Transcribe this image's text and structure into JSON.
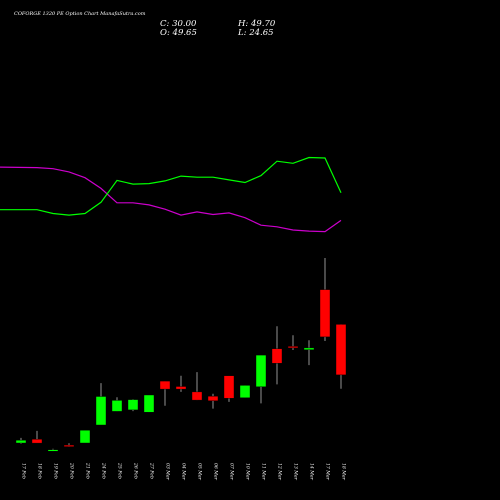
{
  "chart_data": {
    "type": "candlestick",
    "title": "COFORGE 1320  PE Option  Chart ManafaSutra.com",
    "ohlc": {
      "close_label": "C: 30.00",
      "high_label": "H: 49.70",
      "open_label": "O: 49.65",
      "low_label": "L: 24.65"
    },
    "colors": {
      "up": "#00ff00",
      "down": "#ff0000",
      "wick": "#b8b8b8",
      "line_green": "#00ff00",
      "line_magenta": "#cc00cc",
      "background": "#000000"
    },
    "categories": [
      "17 Feb",
      "18 Feb",
      "19 Feb",
      "20 Feb",
      "21 Feb",
      "24 Feb",
      "25 Feb",
      "26 Feb",
      "27 Feb",
      "03 Mar",
      "04 Mar",
      "05 Mar",
      "06 Mar",
      "07 Mar",
      "10 Mar",
      "11 Mar",
      "12 Mar",
      "13 Mar",
      "14 Mar",
      "17 Mar",
      "18 Mar"
    ],
    "x_tick_labels": [
      "17 Feb",
      "18 Feb",
      "19 Feb",
      "20 Feb",
      "21 Feb",
      "24 Feb",
      "25 Feb",
      "26 Feb",
      "27 Feb",
      "03 Mar",
      "04 Mar",
      "05 Mar",
      "06 Mar",
      "07 Mar",
      "10 Mar",
      "11 Mar",
      "12 Mar",
      "13 Mar",
      "14 Mar",
      "17 Mar",
      "18 Mar"
    ],
    "candles": [
      {
        "open": 3.5,
        "high": 5.5,
        "low": 3.2,
        "close": 4.6
      },
      {
        "open": 5.0,
        "high": 8.2,
        "low": 3.5,
        "close": 3.5
      },
      {
        "open": 0.7,
        "high": 1.3,
        "low": 0.3,
        "close": 0.9
      },
      {
        "open": 2.7,
        "high": 3.4,
        "low": 2.0,
        "close": 2.4
      },
      {
        "open": 3.5,
        "high": 8.5,
        "low": 3.5,
        "close": 8.5
      },
      {
        "open": 10.5,
        "high": 26.8,
        "low": 10.5,
        "close": 21.6
      },
      {
        "open": 15.8,
        "high": 21.3,
        "low": 15.8,
        "close": 20.1
      },
      {
        "open": 16.4,
        "high": 20.6,
        "low": 15.9,
        "close": 20.4
      },
      {
        "open": 15.5,
        "high": 22.2,
        "low": 15.5,
        "close": 22.2
      },
      {
        "open": 27.6,
        "high": 27.6,
        "low": 18.0,
        "close": 24.5
      },
      {
        "open": 25.5,
        "high": 29.7,
        "low": 23.4,
        "close": 24.5
      },
      {
        "open": 23.4,
        "high": 31.1,
        "low": 20.2,
        "close": 20.2
      },
      {
        "open": 21.7,
        "high": 22.7,
        "low": 16.9,
        "close": 19.9
      },
      {
        "open": 29.7,
        "high": 29.7,
        "low": 19.5,
        "close": 20.9
      },
      {
        "open": 21.1,
        "high": 25.9,
        "low": 21.1,
        "close": 25.9
      },
      {
        "open": 25.4,
        "high": 37.7,
        "low": 18.9,
        "close": 37.7
      },
      {
        "open": 40.2,
        "high": 48.9,
        "low": 26.3,
        "close": 34.5
      },
      {
        "open": 41.1,
        "high": 45.4,
        "low": 39.7,
        "close": 40.5
      },
      {
        "open": 39.8,
        "high": 43.5,
        "low": 33.8,
        "close": 40.5
      },
      {
        "open": 63.2,
        "high": 75.5,
        "low": 43.2,
        "close": 44.8
      },
      {
        "open": 49.65,
        "high": 49.7,
        "low": 24.65,
        "close": 30.0
      }
    ],
    "price_range": [
      0,
      75.5
    ],
    "line_green_values": [
      71.3,
      71.3,
      70.6,
      70.3,
      70.6,
      72.7,
      76.8,
      76.1,
      76.2,
      76.7,
      77.6,
      77.4,
      77.4,
      76.9,
      76.4,
      77.7,
      80.4,
      80.0,
      81.1,
      81.0,
      74.5
    ],
    "line_magenta_values": [
      79.3,
      79.2,
      79.0,
      78.4,
      77.3,
      75.3,
      72.6,
      72.6,
      72.2,
      71.4,
      70.3,
      70.9,
      70.4,
      70.7,
      69.8,
      68.4,
      68.1,
      67.5,
      67.3,
      67.2,
      69.3
    ],
    "line_range": [
      60,
      90
    ]
  }
}
